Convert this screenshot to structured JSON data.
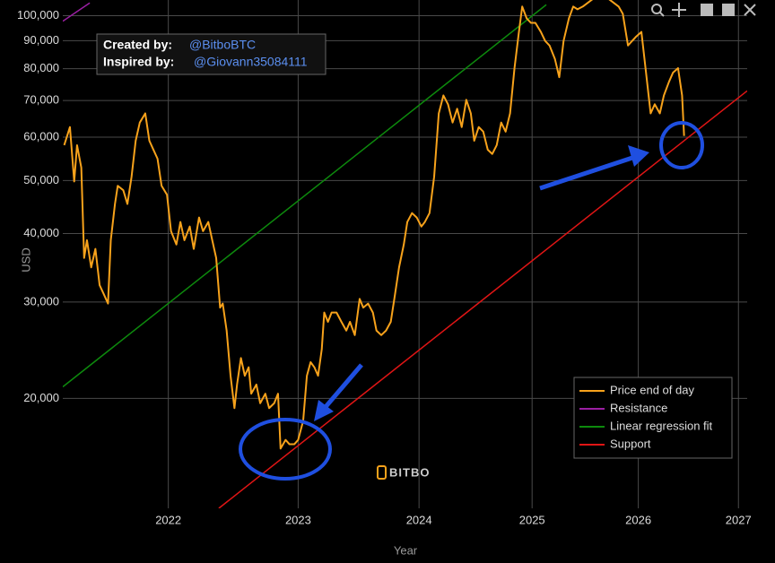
{
  "chart_data": {
    "type": "line",
    "x_label": "Year",
    "y_label": "USD",
    "xscale": "log",
    "yscale": "log",
    "grid": true,
    "legend_position": "lower-right",
    "watermark": "BITBO",
    "annotations": [
      {
        "label": "Created by:",
        "text": "@BitboBTC"
      },
      {
        "label": "Inspired by:",
        "text": "@Giovann35084111"
      }
    ],
    "xlim": [
      2021.24,
      2027.09
    ],
    "xticks": [
      2022,
      2023,
      2024,
      2025,
      2026,
      2027
    ],
    "ylim": [
      12600,
      106800
    ],
    "yticks": [
      {
        "value": 20000,
        "label": "20,000"
      },
      {
        "value": 30000,
        "label": "30,000"
      },
      {
        "value": 40000,
        "label": "40,000"
      },
      {
        "value": 50000,
        "label": "50,000"
      },
      {
        "value": 60000,
        "label": "60,000"
      },
      {
        "value": 70000,
        "label": "70,000"
      },
      {
        "value": 80000,
        "label": "80,000"
      },
      {
        "value": 90000,
        "label": "90,000"
      },
      {
        "value": 100000,
        "label": "100,000"
      }
    ],
    "series": [
      {
        "name": "Price end of day",
        "color": "#f7a21b",
        "x": [
          2021.25,
          2021.29,
          2021.32,
          2021.34,
          2021.37,
          2021.39,
          2021.41,
          2021.44,
          2021.47,
          2021.5,
          2021.53,
          2021.56,
          2021.58,
          2021.61,
          2021.63,
          2021.67,
          2021.7,
          2021.73,
          2021.76,
          2021.79,
          2021.83,
          2021.86,
          2021.89,
          2021.92,
          2021.95,
          2021.99,
          2022.02,
          2022.06,
          2022.09,
          2022.12,
          2022.16,
          2022.19,
          2022.23,
          2022.26,
          2022.3,
          2022.33,
          2022.36,
          2022.39,
          2022.41,
          2022.44,
          2022.47,
          2022.5,
          2022.52,
          2022.55,
          2022.58,
          2022.61,
          2022.63,
          2022.67,
          2022.7,
          2022.74,
          2022.77,
          2022.81,
          2022.84,
          2022.86,
          2022.9,
          2022.93,
          2022.97,
          2023.0,
          2023.04,
          2023.07,
          2023.1,
          2023.13,
          2023.16,
          2023.19,
          2023.21,
          2023.24,
          2023.27,
          2023.31,
          2023.35,
          2023.39,
          2023.42,
          2023.46,
          2023.5,
          2023.53,
          2023.57,
          2023.61,
          2023.64,
          2023.68,
          2023.72,
          2023.76,
          2023.79,
          2023.83,
          2023.87,
          2023.9,
          2023.94,
          2023.98,
          2024.02,
          2024.05,
          2024.09,
          2024.13,
          2024.17,
          2024.21,
          2024.25,
          2024.29,
          2024.33,
          2024.37,
          2024.41,
          2024.45,
          2024.48,
          2024.52,
          2024.56,
          2024.6,
          2024.64,
          2024.68,
          2024.72,
          2024.76,
          2024.8,
          2024.84,
          2024.88,
          2024.91,
          2024.95,
          2024.99,
          2025.03,
          2025.08,
          2025.12,
          2025.16,
          2025.21,
          2025.25,
          2025.29,
          2025.34,
          2025.38,
          2025.42,
          2025.47,
          2025.64,
          2025.81,
          2025.85,
          2025.9,
          2025.94,
          2025.98,
          2026.03,
          2026.07,
          2026.12,
          2026.16,
          2026.21,
          2026.25,
          2026.3,
          2026.34,
          2026.39,
          2026.43,
          2026.45
        ],
        "values": [
          58000,
          62600,
          49800,
          58000,
          52800,
          36100,
          38900,
          34700,
          37500,
          32200,
          31000,
          29800,
          38900,
          45300,
          48900,
          48000,
          45300,
          50800,
          59100,
          63800,
          66300,
          59100,
          56900,
          54800,
          48900,
          47100,
          40400,
          38200,
          42000,
          38900,
          41200,
          37500,
          42800,
          40400,
          42000,
          38900,
          36100,
          29300,
          29800,
          26600,
          22000,
          19200,
          21200,
          23700,
          22000,
          22800,
          20400,
          21200,
          19600,
          20400,
          19200,
          19600,
          20400,
          16200,
          16800,
          16500,
          16500,
          16800,
          18200,
          22000,
          23300,
          22800,
          22000,
          24600,
          28700,
          27600,
          28700,
          28700,
          27600,
          26600,
          27600,
          26100,
          30400,
          29300,
          29800,
          28700,
          26600,
          26100,
          26600,
          27600,
          30400,
          34700,
          38200,
          42000,
          43600,
          42800,
          41200,
          42000,
          43600,
          50800,
          66300,
          71500,
          68900,
          63800,
          67600,
          62600,
          70200,
          66300,
          59100,
          62600,
          61400,
          56900,
          55900,
          58000,
          63800,
          61400,
          66300,
          80200,
          93400,
          103900,
          98900,
          97000,
          97000,
          93400,
          89900,
          88200,
          83300,
          77200,
          89900,
          98900,
          103900,
          102700,
          103900,
          110000,
          103900,
          100800,
          88200,
          89900,
          91600,
          93400,
          80200,
          66300,
          68900,
          66300,
          71500,
          75700,
          78700,
          80200,
          71500,
          60300
        ]
      },
      {
        "name": "Resistance",
        "color": "#9b1fa3",
        "x": [
          2021.24,
          2021.43
        ],
        "values": [
          97700,
          105500
        ]
      },
      {
        "name": "Linear regression fit",
        "color": "#0d8a0d",
        "x": [
          2021.24,
          2025.13
        ],
        "values": [
          21000,
          104700
        ]
      },
      {
        "name": "Support",
        "color": "#e01515",
        "x": [
          2022.38,
          2027.09
        ],
        "values": [
          12600,
          72900
        ]
      }
    ]
  }
}
